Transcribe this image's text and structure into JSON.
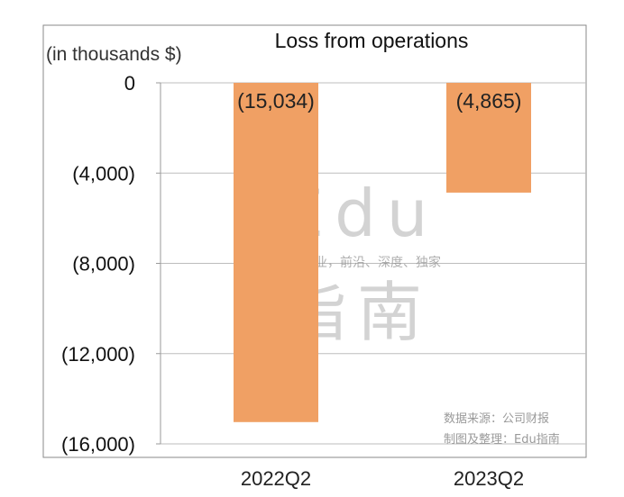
{
  "chart_data": {
    "type": "bar",
    "title": "Loss from operations",
    "unit_label": "(in thousands $)",
    "categories": [
      "2022Q2",
      "2023Q2"
    ],
    "values": [
      -15034,
      -4865
    ],
    "data_labels": [
      "(15,034)",
      "(4,865)"
    ],
    "ylim": [
      -16000,
      0
    ],
    "yticks": [
      0,
      -4000,
      -8000,
      -12000,
      -16000
    ],
    "ytick_labels": [
      "0",
      "(4,000)",
      "(8,000)",
      "(12,000)",
      "(16,000)"
    ],
    "grid": true,
    "bar_color": "#f0a064"
  },
  "watermark": {
    "brand": "Edu",
    "tagline": "教育行业，前沿、深度、独家",
    "name": "指南"
  },
  "source": {
    "line1": "数据来源：公司财报",
    "line2": "制图及整理：Edu指南"
  }
}
